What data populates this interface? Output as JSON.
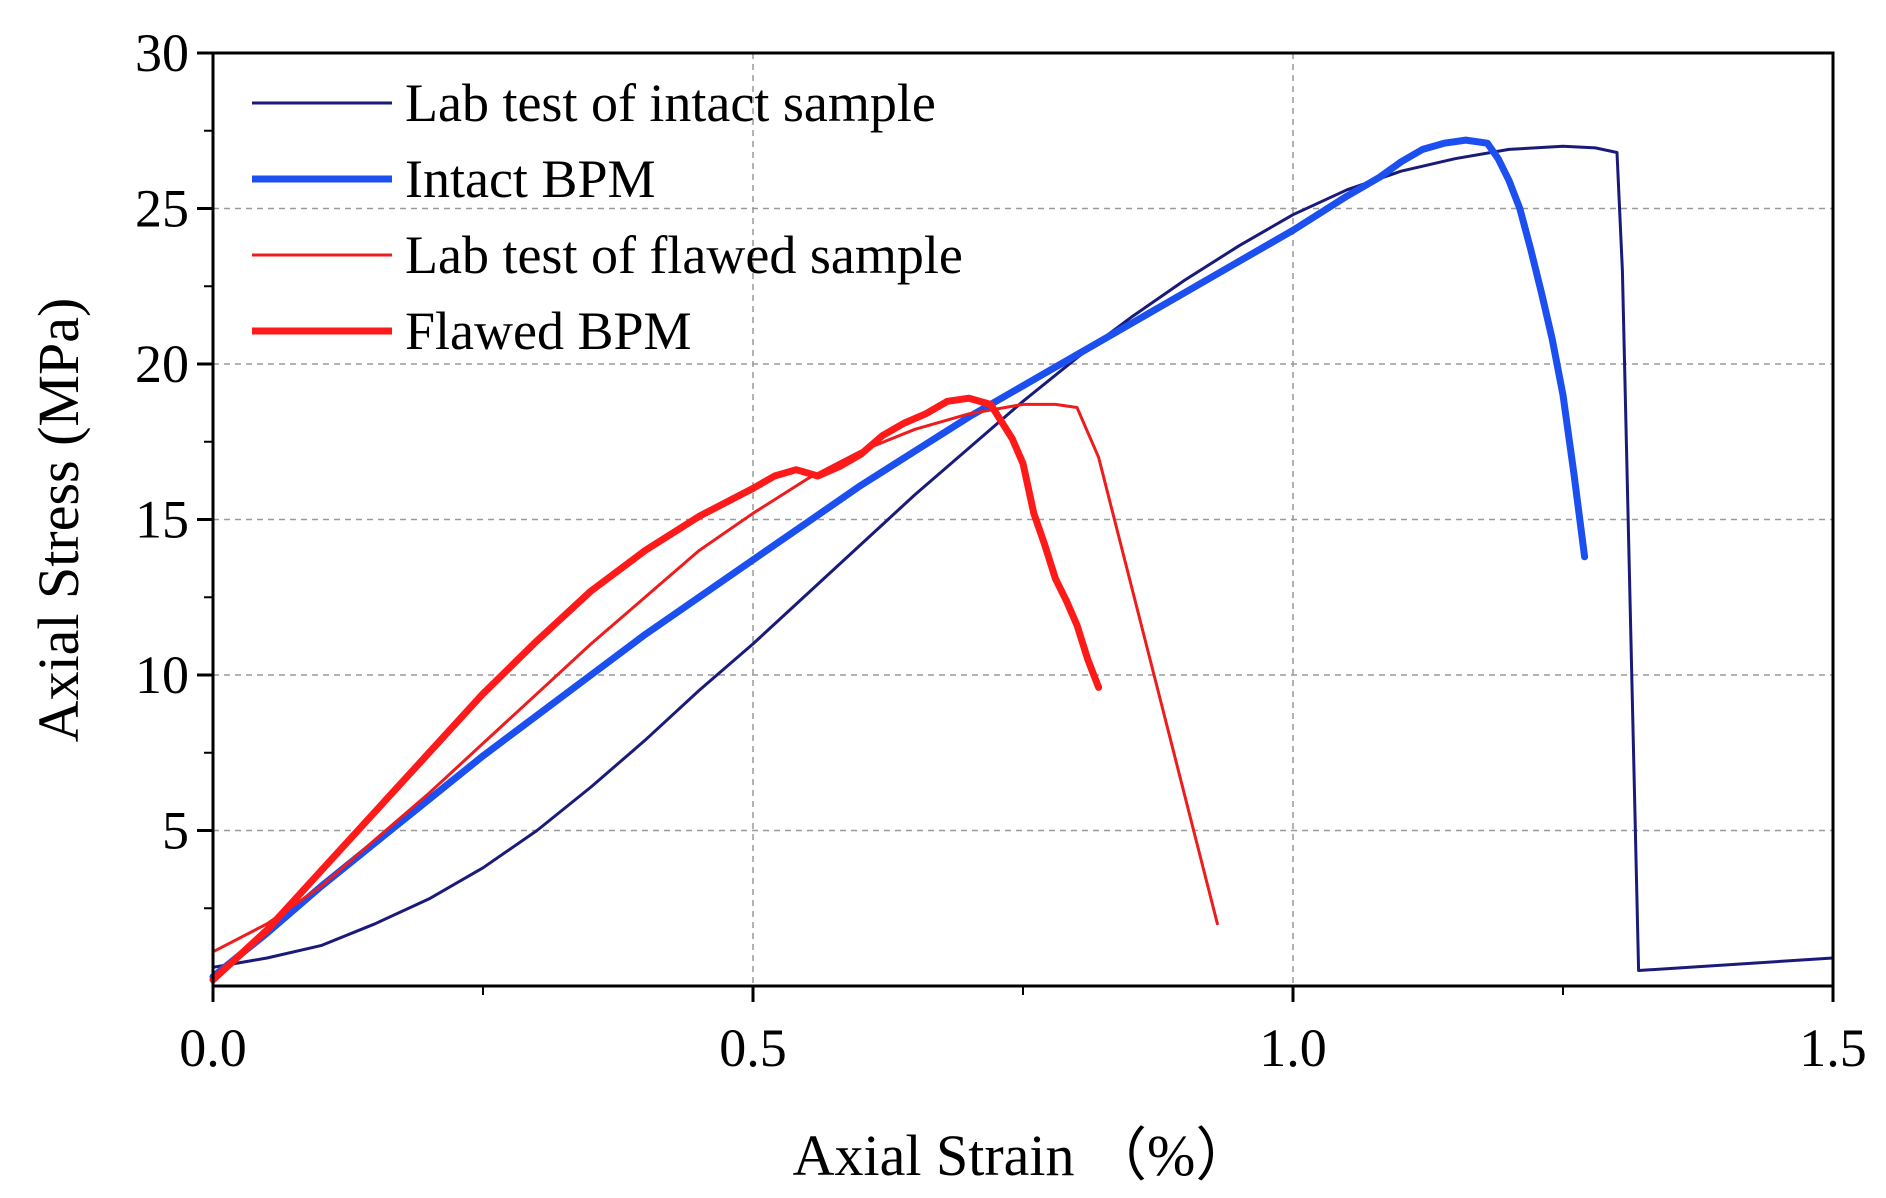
{
  "chart_data": {
    "type": "line",
    "xlabel": "Axial Strain （%）",
    "ylabel": "Axial Stress (MPa)",
    "xlim": [
      0.0,
      1.5
    ],
    "ylim": [
      0,
      30
    ],
    "x_ticks": [
      0.0,
      0.5,
      1.0,
      1.5
    ],
    "x_tick_labels": [
      "0.0",
      "0.5",
      "1.0",
      "1.5"
    ],
    "y_ticks": [
      5,
      10,
      15,
      20,
      25,
      30
    ],
    "y_tick_labels": [
      "5",
      "10",
      "15",
      "20",
      "25",
      "30"
    ],
    "grid": "dashed",
    "legend_position": "top-left",
    "series": [
      {
        "name": "Lab test of intact sample",
        "color": "#1a1a7a",
        "width": 3,
        "x": [
          0.0,
          0.05,
          0.1,
          0.15,
          0.2,
          0.25,
          0.3,
          0.35,
          0.4,
          0.45,
          0.5,
          0.55,
          0.6,
          0.65,
          0.7,
          0.75,
          0.8,
          0.85,
          0.9,
          0.95,
          1.0,
          1.05,
          1.1,
          1.15,
          1.2,
          1.25,
          1.28,
          1.3,
          1.305,
          1.32,
          1.5
        ],
        "y": [
          0.6,
          0.9,
          1.3,
          2.0,
          2.8,
          3.8,
          5.0,
          6.4,
          7.9,
          9.5,
          11.0,
          12.6,
          14.2,
          15.8,
          17.3,
          18.8,
          20.2,
          21.5,
          22.7,
          23.8,
          24.8,
          25.6,
          26.2,
          26.6,
          26.9,
          27.0,
          26.95,
          26.8,
          23.0,
          0.5,
          0.9
        ]
      },
      {
        "name": "Intact BPM",
        "color": "#1c4ff0",
        "width": 7,
        "x": [
          0.0,
          0.05,
          0.1,
          0.15,
          0.2,
          0.25,
          0.3,
          0.35,
          0.4,
          0.45,
          0.5,
          0.55,
          0.6,
          0.65,
          0.7,
          0.75,
          0.8,
          0.85,
          0.9,
          0.95,
          1.0,
          1.05,
          1.08,
          1.1,
          1.12,
          1.14,
          1.16,
          1.18,
          1.19,
          1.2,
          1.21,
          1.22,
          1.23,
          1.24,
          1.25,
          1.26,
          1.27
        ],
        "y": [
          0.3,
          1.7,
          3.2,
          4.6,
          6.0,
          7.4,
          8.7,
          10.0,
          11.3,
          12.5,
          13.7,
          14.9,
          16.1,
          17.2,
          18.3,
          19.3,
          20.3,
          21.3,
          22.3,
          23.3,
          24.3,
          25.4,
          26.0,
          26.5,
          26.9,
          27.1,
          27.2,
          27.1,
          26.6,
          25.9,
          25.0,
          23.7,
          22.3,
          20.8,
          19.0,
          16.5,
          13.8
        ]
      },
      {
        "name": "Lab test of flawed sample",
        "color": "#ee1c1c",
        "width": 3,
        "x": [
          0.0,
          0.05,
          0.1,
          0.15,
          0.2,
          0.25,
          0.3,
          0.35,
          0.4,
          0.45,
          0.5,
          0.55,
          0.6,
          0.65,
          0.7,
          0.75,
          0.78,
          0.8,
          0.82,
          0.93
        ],
        "y": [
          1.1,
          2.0,
          3.2,
          4.7,
          6.2,
          7.8,
          9.4,
          11.0,
          12.5,
          14.0,
          15.2,
          16.3,
          17.2,
          17.9,
          18.4,
          18.7,
          18.7,
          18.6,
          17.0,
          2.0
        ]
      },
      {
        "name": "Flawed BPM",
        "color": "#ff1a1a",
        "width": 7,
        "x": [
          0.0,
          0.05,
          0.1,
          0.15,
          0.2,
          0.25,
          0.3,
          0.35,
          0.4,
          0.45,
          0.5,
          0.52,
          0.54,
          0.56,
          0.58,
          0.6,
          0.62,
          0.64,
          0.66,
          0.68,
          0.7,
          0.72,
          0.74,
          0.75,
          0.76,
          0.77,
          0.78,
          0.79,
          0.8,
          0.81,
          0.82
        ],
        "y": [
          0.2,
          1.8,
          3.7,
          5.6,
          7.5,
          9.4,
          11.1,
          12.7,
          14.0,
          15.1,
          16.0,
          16.4,
          16.6,
          16.4,
          16.7,
          17.1,
          17.7,
          18.1,
          18.4,
          18.8,
          18.9,
          18.7,
          17.6,
          16.8,
          15.2,
          14.2,
          13.1,
          12.4,
          11.6,
          10.5,
          9.6
        ]
      }
    ]
  }
}
